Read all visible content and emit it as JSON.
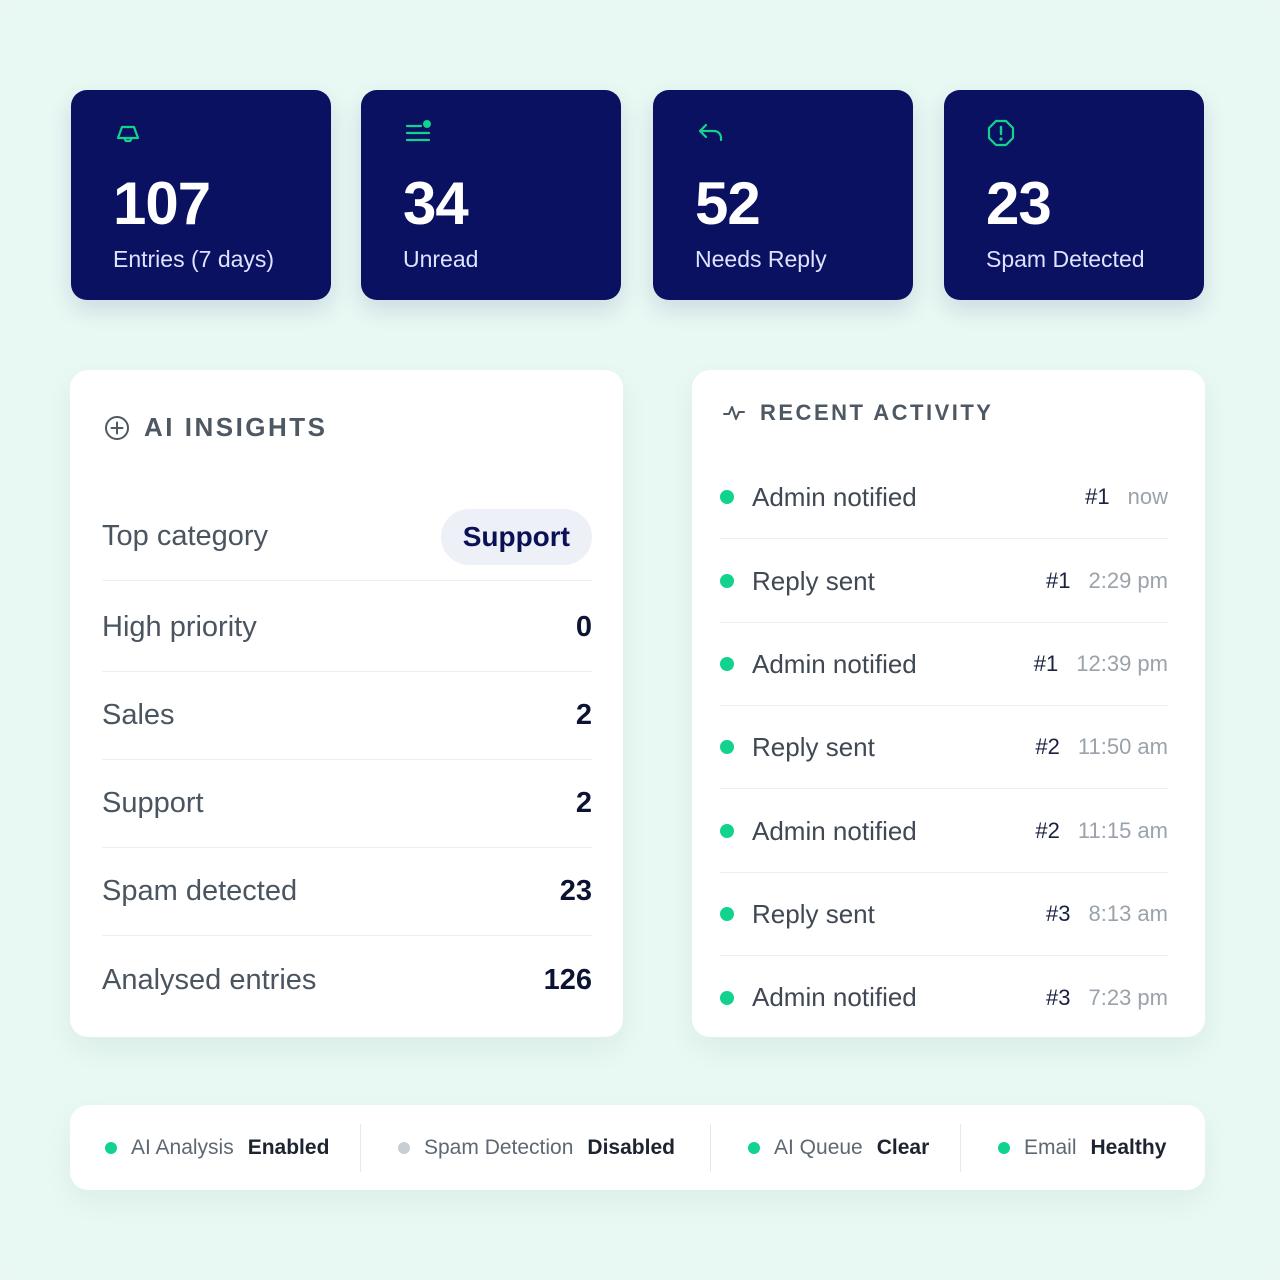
{
  "stats": [
    {
      "icon": "inbox-icon",
      "value": "107",
      "label": "Entries (7 days)"
    },
    {
      "icon": "list-icon",
      "value": "34",
      "label": "Unread"
    },
    {
      "icon": "reply-icon",
      "value": "52",
      "label": "Needs Reply"
    },
    {
      "icon": "alert-icon",
      "value": "23",
      "label": "Spam Detected"
    }
  ],
  "insights": {
    "title": "AI INSIGHTS",
    "top_category_label": "Top category",
    "top_category_value": "Support",
    "rows": [
      {
        "label": "High priority",
        "value": "0"
      },
      {
        "label": "Sales",
        "value": "2"
      },
      {
        "label": "Support",
        "value": "2"
      },
      {
        "label": "Spam detected",
        "value": "23"
      },
      {
        "label": "Analysed entries",
        "value": "126"
      }
    ]
  },
  "activity": {
    "title": "RECENT ACTIVITY",
    "items": [
      {
        "text": "Admin notified",
        "ref": "#1",
        "time": "now"
      },
      {
        "text": "Reply sent",
        "ref": "#1",
        "time": "2:29 pm"
      },
      {
        "text": "Admin notified",
        "ref": "#1",
        "time": "12:39 pm"
      },
      {
        "text": "Reply sent",
        "ref": "#2",
        "time": "11:50 am"
      },
      {
        "text": "Admin notified",
        "ref": "#2",
        "time": "11:15 am"
      },
      {
        "text": "Reply sent",
        "ref": "#3",
        "time": "8:13 am"
      },
      {
        "text": "Admin notified",
        "ref": "#3",
        "time": "7:23 pm"
      }
    ]
  },
  "status_bar": [
    {
      "name": "AI Analysis",
      "value": "Enabled",
      "color": "#12d38d"
    },
    {
      "name": "Spam Detection",
      "value": "Disabled",
      "color": "#c9ced3"
    },
    {
      "name": "AI Queue",
      "value": "Clear",
      "color": "#12d38d"
    },
    {
      "name": "Email",
      "value": "Healthy",
      "color": "#12d38d"
    }
  ],
  "colors": {
    "accent": "#12d38d",
    "card": "#0a1160"
  }
}
